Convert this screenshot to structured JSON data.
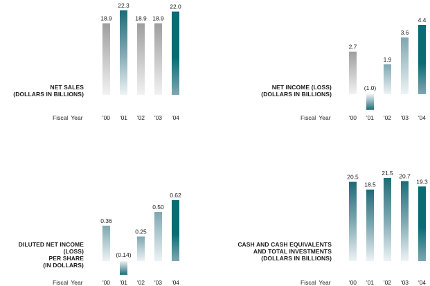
{
  "colors": {
    "gray_dark": "#9e9e9e",
    "gray_light": "#f2f2f2",
    "teal_dark": "#1e6b78",
    "teal_mid": "#7ea7b1",
    "teal_light": "#eef3f5",
    "highlight_dark": "#0a6b76"
  },
  "fiscal_year_label": "Fiscal Year",
  "chart_data": [
    {
      "type": "bar",
      "title": "NET SALES\n(DOLLARS IN BILLIONS)",
      "categories": [
        "'00",
        "'01",
        "'02",
        "'03",
        "'04"
      ],
      "values": [
        18.9,
        22.3,
        18.9,
        18.9,
        22.0
      ],
      "value_labels": [
        "18.9",
        "22.3",
        "18.9",
        "18.9",
        "22.0"
      ],
      "ylim": [
        0,
        22.3
      ]
    },
    {
      "type": "bar",
      "title": "NET INCOME (LOSS)\n(DOLLARS IN BILLIONS)",
      "categories": [
        "'00",
        "'01",
        "'02",
        "'03",
        "'04"
      ],
      "values": [
        2.7,
        -1.0,
        1.9,
        3.6,
        4.4
      ],
      "value_labels": [
        "2.7",
        "(1.0)",
        "1.9",
        "3.6",
        "4.4"
      ],
      "ylim": [
        -1.0,
        4.4
      ]
    },
    {
      "type": "bar",
      "title": "DILUTED NET INCOME (LOSS)\nPER SHARE\n(IN DOLLARS)",
      "categories": [
        "'00",
        "'01",
        "'02",
        "'03",
        "'04"
      ],
      "values": [
        0.36,
        -0.14,
        0.25,
        0.5,
        0.62
      ],
      "value_labels": [
        "0.36",
        "(0.14)",
        "0.25",
        "0.50",
        "0.62"
      ],
      "ylim": [
        -0.14,
        0.62
      ]
    },
    {
      "type": "bar",
      "title": "CASH AND CASH EQUIVALENTS\nAND TOTAL INVESTMENTS\n(DOLLARS IN BILLIONS)",
      "categories": [
        "'00",
        "'01",
        "'02",
        "'03",
        "'04"
      ],
      "values": [
        20.5,
        18.5,
        21.5,
        20.7,
        19.3
      ],
      "value_labels": [
        "20.5",
        "18.5",
        "21.5",
        "20.7",
        "19.3"
      ],
      "ylim": [
        0,
        21.5
      ]
    }
  ]
}
